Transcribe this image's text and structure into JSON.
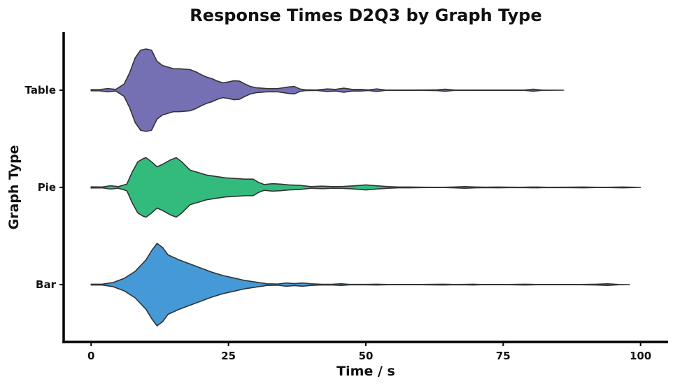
{
  "chart_data": {
    "type": "violin",
    "title": "Response Times D2Q3 by Graph Type",
    "xlabel": "Time / s",
    "ylabel": "Graph Type",
    "xlim": [
      -5,
      105
    ],
    "x_ticks": [
      0,
      25,
      50,
      75,
      100
    ],
    "categories": [
      "Table",
      "Pie",
      "Bar"
    ],
    "grid": false,
    "legend": "none",
    "series": [
      {
        "name": "Table",
        "color": "#7570b3",
        "x_range": [
          0,
          86
        ],
        "density": [
          [
            0,
            0.015
          ],
          [
            1.5,
            0.015
          ],
          [
            3,
            0.04
          ],
          [
            4.5,
            0.02
          ],
          [
            6,
            0.15
          ],
          [
            7,
            0.42
          ],
          [
            8,
            0.78
          ],
          [
            9,
            0.97
          ],
          [
            10,
            1.0
          ],
          [
            11,
            0.97
          ],
          [
            12,
            0.7
          ],
          [
            13,
            0.6
          ],
          [
            14,
            0.56
          ],
          [
            15,
            0.52
          ],
          [
            16,
            0.52
          ],
          [
            17,
            0.51
          ],
          [
            18,
            0.5
          ],
          [
            19,
            0.45
          ],
          [
            20,
            0.38
          ],
          [
            21,
            0.32
          ],
          [
            22,
            0.28
          ],
          [
            23,
            0.22
          ],
          [
            24,
            0.18
          ],
          [
            25,
            0.2
          ],
          [
            26,
            0.23
          ],
          [
            27,
            0.22
          ],
          [
            28,
            0.15
          ],
          [
            29,
            0.09
          ],
          [
            30,
            0.06
          ],
          [
            32,
            0.04
          ],
          [
            34,
            0.04
          ],
          [
            36,
            0.08
          ],
          [
            37,
            0.09
          ],
          [
            38,
            0.03
          ],
          [
            39,
            0.01
          ],
          [
            41,
            0.005
          ],
          [
            43,
            0.03
          ],
          [
            44.5,
            0.02
          ],
          [
            46,
            0.05
          ],
          [
            47.5,
            0.02
          ],
          [
            49,
            0.02
          ],
          [
            50.5,
            0.008
          ],
          [
            52,
            0.03
          ],
          [
            53.5,
            0.005
          ],
          [
            57,
            0.003
          ],
          [
            61,
            0.005
          ],
          [
            63,
            0.01
          ],
          [
            64.5,
            0.025
          ],
          [
            66,
            0.005
          ],
          [
            70,
            0.003
          ],
          [
            76,
            0.003
          ],
          [
            79,
            0.006
          ],
          [
            80.5,
            0.025
          ],
          [
            82,
            0.003
          ],
          [
            86,
            0
          ]
        ]
      },
      {
        "name": "Pie",
        "color": "#33bb7d",
        "x_range": [
          0,
          100
        ],
        "density": [
          [
            0,
            0.015
          ],
          [
            2,
            0.01
          ],
          [
            3.5,
            0.04
          ],
          [
            5,
            0.02
          ],
          [
            6.5,
            0.08
          ],
          [
            7.5,
            0.38
          ],
          [
            8.5,
            0.62
          ],
          [
            9.5,
            0.7
          ],
          [
            10,
            0.72
          ],
          [
            11,
            0.62
          ],
          [
            12,
            0.5
          ],
          [
            13,
            0.56
          ],
          [
            14.5,
            0.67
          ],
          [
            15.5,
            0.72
          ],
          [
            16.5,
            0.62
          ],
          [
            18,
            0.42
          ],
          [
            19.5,
            0.36
          ],
          [
            21,
            0.3
          ],
          [
            23,
            0.26
          ],
          [
            24.5,
            0.23
          ],
          [
            26,
            0.22
          ],
          [
            28,
            0.2
          ],
          [
            29.5,
            0.2
          ],
          [
            30.5,
            0.12
          ],
          [
            31.5,
            0.07
          ],
          [
            33,
            0.09
          ],
          [
            34.5,
            0.08
          ],
          [
            36,
            0.06
          ],
          [
            38,
            0.05
          ],
          [
            40,
            0.02
          ],
          [
            42,
            0.03
          ],
          [
            44,
            0.02
          ],
          [
            46,
            0.025
          ],
          [
            48,
            0.04
          ],
          [
            50,
            0.06
          ],
          [
            52,
            0.04
          ],
          [
            54,
            0.02
          ],
          [
            56,
            0.01
          ],
          [
            58,
            0.01
          ],
          [
            60,
            0.005
          ],
          [
            62,
            0.003
          ],
          [
            64,
            0.003
          ],
          [
            66,
            0.01
          ],
          [
            68,
            0.02
          ],
          [
            70,
            0.01
          ],
          [
            72,
            0.005
          ],
          [
            74,
            0.01
          ],
          [
            76,
            0.005
          ],
          [
            78,
            0.003
          ],
          [
            81,
            0.01
          ],
          [
            83,
            0.003
          ],
          [
            87,
            0.005
          ],
          [
            89.5,
            0.01
          ],
          [
            92,
            0.003
          ],
          [
            94,
            0.004
          ],
          [
            97,
            0.01
          ],
          [
            100,
            0
          ]
        ]
      },
      {
        "name": "Bar",
        "color": "#4599d6",
        "x_range": [
          0,
          98
        ],
        "density": [
          [
            0,
            0.01
          ],
          [
            2,
            0.01
          ],
          [
            4,
            0.05
          ],
          [
            6,
            0.15
          ],
          [
            8,
            0.32
          ],
          [
            10,
            0.6
          ],
          [
            11,
            0.82
          ],
          [
            12,
            1.0
          ],
          [
            13,
            0.9
          ],
          [
            14,
            0.72
          ],
          [
            16,
            0.6
          ],
          [
            18,
            0.5
          ],
          [
            20,
            0.4
          ],
          [
            22,
            0.3
          ],
          [
            24,
            0.22
          ],
          [
            26,
            0.16
          ],
          [
            28,
            0.1
          ],
          [
            30,
            0.06
          ],
          [
            32,
            0.02
          ],
          [
            34,
            0.015
          ],
          [
            35.5,
            0.04
          ],
          [
            37,
            0.025
          ],
          [
            38.5,
            0.04
          ],
          [
            40,
            0.02
          ],
          [
            42,
            0.008
          ],
          [
            44,
            0.01
          ],
          [
            45.5,
            0.02
          ],
          [
            47,
            0.005
          ],
          [
            50,
            0.005
          ],
          [
            52,
            0.01
          ],
          [
            54,
            0.003
          ],
          [
            60,
            0.003
          ],
          [
            64,
            0.01
          ],
          [
            66,
            0.003
          ],
          [
            68,
            0.005
          ],
          [
            69.5,
            0.01
          ],
          [
            71,
            0.003
          ],
          [
            76,
            0.003
          ],
          [
            79,
            0.01
          ],
          [
            81,
            0.003
          ],
          [
            89,
            0.003
          ],
          [
            92,
            0.01
          ],
          [
            94,
            0.02
          ],
          [
            96,
            0.003
          ],
          [
            98,
            0
          ]
        ]
      }
    ]
  }
}
